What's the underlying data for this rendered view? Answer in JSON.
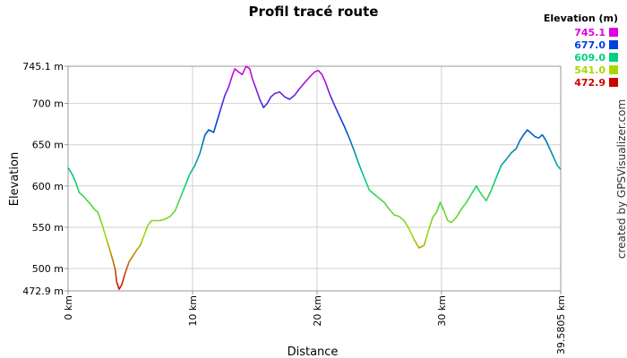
{
  "chart_data": {
    "type": "line",
    "title": "Profil tracé route",
    "xlabel": "Distance",
    "ylabel": "Elevation",
    "xlim": [
      0,
      39.5805
    ],
    "ylim": [
      472.9,
      745.1
    ],
    "x_tick_labels": [
      {
        "value": 0,
        "label": "0 km"
      },
      {
        "value": 10,
        "label": "10 km"
      },
      {
        "value": 20,
        "label": "20 km"
      },
      {
        "value": 30,
        "label": "30 km"
      },
      {
        "value": 39.5805,
        "label": "39.5805 km"
      }
    ],
    "y_tick_labels": [
      {
        "value": 745.1,
        "label": "745.1 m"
      },
      {
        "value": 700,
        "label": "700 m"
      },
      {
        "value": 650,
        "label": "650 m"
      },
      {
        "value": 600,
        "label": "600 m"
      },
      {
        "value": 550,
        "label": "550 m"
      },
      {
        "value": 500,
        "label": "500 m"
      },
      {
        "value": 472.9,
        "label": "472.9 m"
      }
    ],
    "grid": true,
    "legend": {
      "title": "Elevation (m)",
      "position": "top-right",
      "entries": [
        {
          "label": "745.1",
          "color": "#e000e0"
        },
        {
          "label": "677.0",
          "color": "#0040e0"
        },
        {
          "label": "609.0",
          "color": "#00d080"
        },
        {
          "label": "541.0",
          "color": "#a8d800"
        },
        {
          "label": "472.9",
          "color": "#d00000"
        }
      ]
    },
    "series": [
      {
        "x": [
          0,
          0.3,
          0.6,
          0.9,
          1.2,
          1.5,
          1.8,
          2.1,
          2.4,
          2.7,
          3.0,
          3.3,
          3.6,
          3.8,
          3.9,
          4.1,
          4.3,
          4.6,
          4.9,
          5.2,
          5.5,
          5.8,
          6.1,
          6.4,
          6.7,
          7.0,
          7.4,
          7.8,
          8.2,
          8.6,
          9.0,
          9.4,
          9.8,
          10.2,
          10.6,
          11.0,
          11.3,
          11.7,
          12.0,
          12.3,
          12.6,
          12.9,
          13.2,
          13.4,
          13.7,
          14.0,
          14.3,
          14.6,
          14.8,
          15.1,
          15.4,
          15.7,
          16.0,
          16.3,
          16.6,
          17.0,
          17.4,
          17.8,
          18.2,
          18.6,
          19.0,
          19.4,
          19.8,
          20.1,
          20.4,
          20.7,
          21.0,
          21.4,
          21.8,
          22.2,
          22.6,
          23.0,
          23.4,
          23.8,
          24.2,
          24.6,
          25.0,
          25.4,
          25.8,
          26.2,
          26.6,
          27.0,
          27.4,
          27.8,
          28.2,
          28.6,
          29.0,
          29.3,
          29.6,
          29.9,
          30.2,
          30.5,
          30.8,
          31.2,
          31.6,
          32.0,
          32.4,
          32.8,
          33.2,
          33.6,
          34.0,
          34.4,
          34.8,
          35.2,
          35.6,
          36.0,
          36.3,
          36.6,
          36.9,
          37.2,
          37.5,
          37.8,
          38.1,
          38.4,
          38.7,
          39.0,
          39.3,
          39.5805
        ],
        "y": [
          622,
          615,
          605,
          592,
          588,
          583,
          578,
          572,
          568,
          555,
          540,
          525,
          510,
          498,
          484,
          475,
          480,
          495,
          508,
          515,
          522,
          528,
          540,
          552,
          558,
          558,
          558,
          560,
          563,
          570,
          585,
          600,
          615,
          625,
          640,
          662,
          668,
          665,
          680,
          695,
          710,
          720,
          734,
          742,
          738,
          735,
          745,
          742,
          730,
          718,
          705,
          695,
          700,
          708,
          712,
          714,
          708,
          705,
          710,
          718,
          725,
          732,
          738,
          740,
          735,
          725,
          712,
          698,
          685,
          672,
          658,
          642,
          625,
          610,
          595,
          590,
          585,
          580,
          572,
          565,
          563,
          558,
          548,
          535,
          525,
          528,
          548,
          562,
          568,
          580,
          570,
          558,
          556,
          562,
          572,
          580,
          590,
          600,
          590,
          582,
          595,
          610,
          625,
          632,
          640,
          645,
          655,
          662,
          668,
          664,
          660,
          658,
          662,
          655,
          645,
          635,
          625,
          620
        ]
      }
    ]
  },
  "credit_text": "created by GPSVisualizer.com"
}
